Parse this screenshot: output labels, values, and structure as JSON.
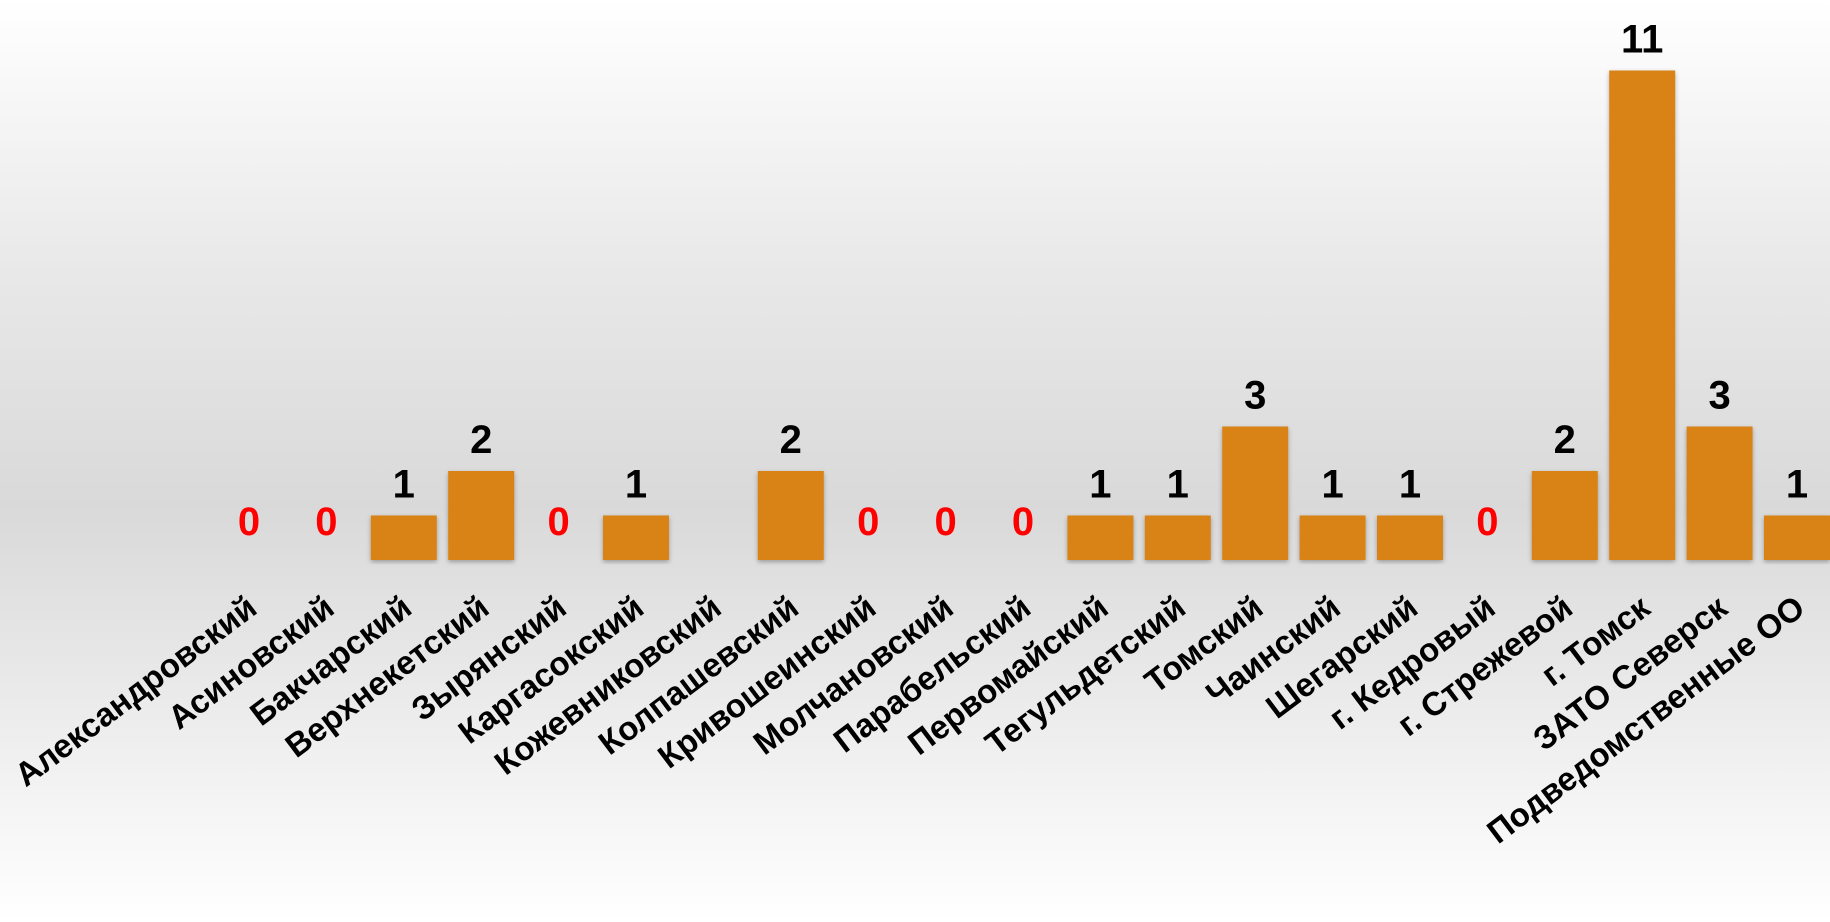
{
  "chart_data": {
    "type": "bar",
    "title": "",
    "xlabel": "",
    "ylabel": "",
    "ylim": [
      0,
      11
    ],
    "grid": false,
    "legend": "none",
    "categories": [
      "Александровский",
      "Асиновский",
      "Бакчарский",
      "Верхнекетский",
      "Зырянский",
      "Каргасокский",
      "Кожевниковский",
      "Колпашевский",
      "Кривошеинский",
      "Молчановский",
      "Парабельский",
      "Первомайский",
      "Тегульдетский",
      "Томский",
      "Чаинский",
      "Шегарский",
      "г. Кедровый",
      "г. Стрежевой",
      "г. Томск",
      "ЗАТО Северск",
      "Подведомственные ОО"
    ],
    "values": [
      0,
      0,
      1,
      2,
      0,
      1,
      null,
      2,
      0,
      0,
      0,
      1,
      1,
      3,
      1,
      1,
      0,
      2,
      11,
      3,
      1
    ],
    "value_labels": [
      "0",
      "0",
      "1",
      "2",
      "0",
      "1",
      "",
      "2",
      "0",
      "0",
      "0",
      "1",
      "1",
      "3",
      "1",
      "1",
      "0",
      "2",
      "11",
      "3",
      "1"
    ],
    "colors": {
      "bar": "#D98217",
      "label": "#000000",
      "zero_label": "#FF0000"
    }
  }
}
